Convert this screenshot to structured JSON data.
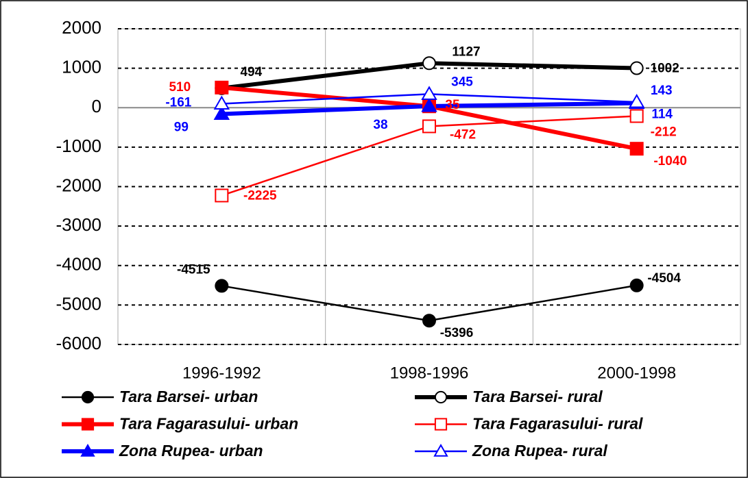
{
  "chart_data": {
    "type": "line",
    "categories": [
      "1996-1992",
      "1998-1996",
      "2000-1998"
    ],
    "ylim": [
      -6000,
      2000
    ],
    "yticks": [
      -6000,
      -5000,
      -4000,
      -3000,
      -2000,
      -1000,
      0,
      1000,
      2000
    ],
    "grid": true,
    "legend": "bottom",
    "series": [
      {
        "name": "Tara Barsei- urban",
        "color": "#000000",
        "marker": "circle",
        "filled": true,
        "values": [
          -4515,
          -5396,
          -4504
        ]
      },
      {
        "name": "Tara Barsei- rural",
        "color": "#000000",
        "marker": "circle",
        "filled": false,
        "values": [
          494,
          1127,
          1002
        ]
      },
      {
        "name": "Tara Fagarasului- urban",
        "color": "#ff0000",
        "marker": "square",
        "filled": true,
        "values": [
          510,
          35,
          -1040
        ]
      },
      {
        "name": "Tara Fagarasului- rural",
        "color": "#ff0000",
        "marker": "square",
        "filled": false,
        "values": [
          -2225,
          -472,
          -212
        ]
      },
      {
        "name": "Zona Rupea- urban",
        "color": "#0000ff",
        "marker": "triangle",
        "filled": true,
        "values": [
          -161,
          38,
          114
        ]
      },
      {
        "name": "Zona Rupea- rural",
        "color": "#0000ff",
        "marker": "triangle",
        "filled": false,
        "values": [
          99,
          345,
          143
        ]
      }
    ]
  }
}
